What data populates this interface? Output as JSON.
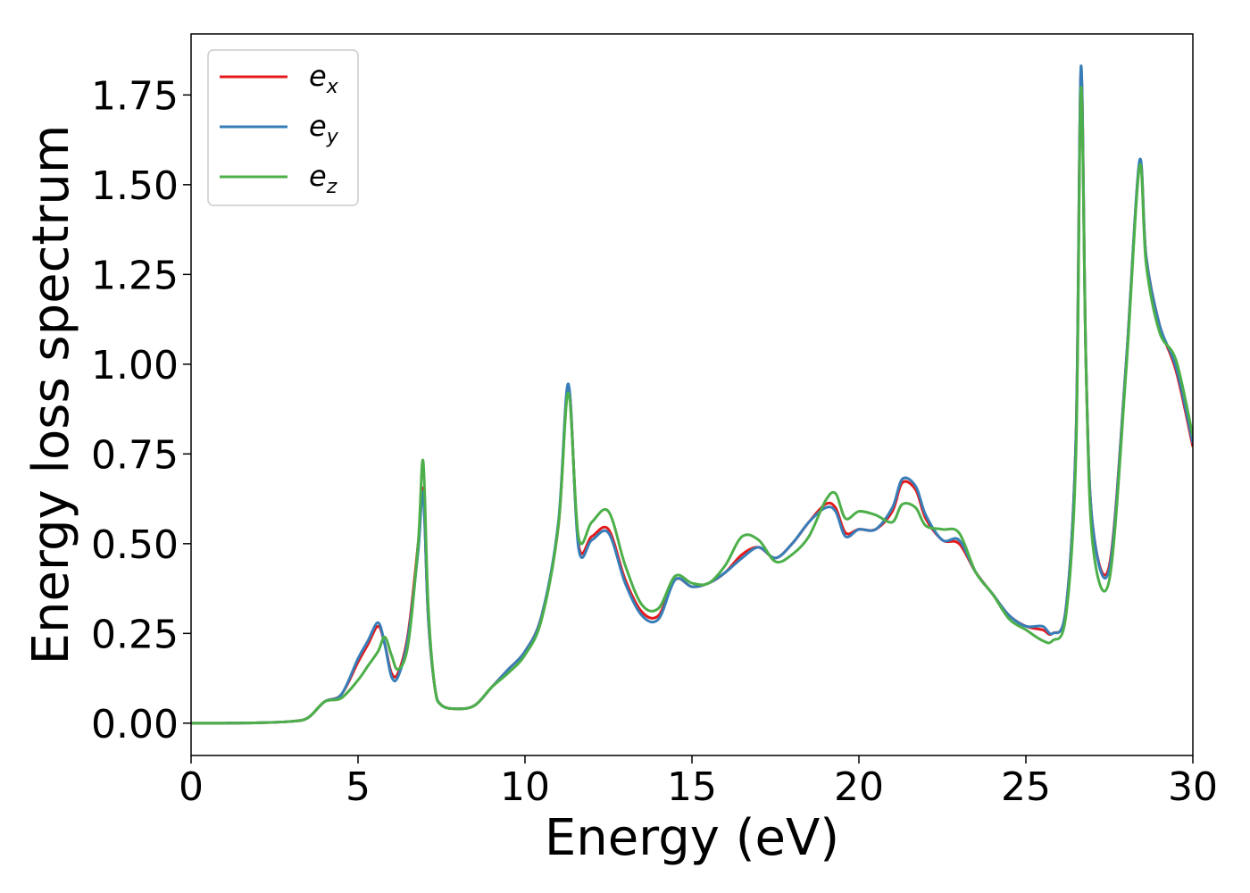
{
  "chart_data": {
    "type": "line",
    "title": "",
    "xlabel": "Energy (eV)",
    "ylabel": "Energy loss spectrum",
    "xlim": [
      0,
      30
    ],
    "ylim": [
      -0.09,
      1.92
    ],
    "xticks": [
      0,
      5,
      10,
      15,
      20,
      25,
      30
    ],
    "xtick_labels": [
      "0",
      "5",
      "10",
      "15",
      "20",
      "25",
      "30"
    ],
    "yticks": [
      0.0,
      0.25,
      0.5,
      0.75,
      1.0,
      1.25,
      1.5,
      1.75
    ],
    "ytick_labels": [
      "0.00",
      "0.25",
      "0.50",
      "0.75",
      "1.00",
      "1.25",
      "1.50",
      "1.75"
    ],
    "grid": false,
    "legend_position": "top-left",
    "x": [
      0,
      1,
      2,
      3,
      3.5,
      4,
      4.5,
      5,
      5.3,
      5.6,
      5.8,
      6.0,
      6.2,
      6.5,
      6.8,
      6.95,
      7.1,
      7.3,
      7.5,
      8.0,
      8.5,
      9.0,
      9.5,
      10.0,
      10.5,
      11.0,
      11.3,
      11.6,
      12.0,
      12.5,
      13.0,
      13.5,
      14.0,
      14.5,
      15.0,
      15.5,
      16.0,
      16.5,
      17.0,
      17.5,
      18.0,
      18.5,
      19.0,
      19.3,
      19.6,
      20.0,
      20.5,
      21.0,
      21.3,
      21.7,
      22.0,
      22.5,
      23.0,
      23.5,
      24.0,
      24.5,
      25.0,
      25.5,
      25.8,
      26.2,
      26.5,
      26.65,
      26.8,
      27.0,
      27.5,
      28.0,
      28.4,
      28.6,
      29.0,
      29.5,
      30.0
    ],
    "series": [
      {
        "name": "e_x",
        "color": "#e41a1c",
        "values": [
          0.0,
          0.0,
          0.001,
          0.005,
          0.015,
          0.06,
          0.08,
          0.17,
          0.22,
          0.27,
          0.22,
          0.14,
          0.14,
          0.25,
          0.5,
          0.65,
          0.3,
          0.1,
          0.05,
          0.04,
          0.05,
          0.1,
          0.15,
          0.2,
          0.3,
          0.55,
          0.94,
          0.5,
          0.52,
          0.54,
          0.4,
          0.31,
          0.3,
          0.4,
          0.38,
          0.39,
          0.42,
          0.47,
          0.49,
          0.46,
          0.5,
          0.56,
          0.61,
          0.6,
          0.53,
          0.54,
          0.54,
          0.59,
          0.67,
          0.65,
          0.57,
          0.51,
          0.5,
          0.42,
          0.36,
          0.3,
          0.27,
          0.26,
          0.25,
          0.32,
          0.8,
          1.82,
          1.0,
          0.55,
          0.44,
          1.0,
          1.56,
          1.3,
          1.11,
          0.98,
          0.77
        ]
      },
      {
        "name": "e_y",
        "color": "#377eb8",
        "values": [
          0.0,
          0.0,
          0.001,
          0.005,
          0.015,
          0.06,
          0.08,
          0.18,
          0.23,
          0.28,
          0.22,
          0.13,
          0.13,
          0.24,
          0.48,
          0.64,
          0.3,
          0.1,
          0.05,
          0.04,
          0.05,
          0.1,
          0.15,
          0.2,
          0.3,
          0.56,
          0.945,
          0.49,
          0.51,
          0.53,
          0.39,
          0.3,
          0.29,
          0.4,
          0.38,
          0.39,
          0.42,
          0.46,
          0.49,
          0.46,
          0.5,
          0.56,
          0.6,
          0.59,
          0.52,
          0.54,
          0.54,
          0.6,
          0.68,
          0.66,
          0.58,
          0.51,
          0.51,
          0.42,
          0.36,
          0.3,
          0.27,
          0.27,
          0.25,
          0.32,
          0.8,
          1.83,
          1.0,
          0.55,
          0.43,
          1.0,
          1.565,
          1.3,
          1.11,
          0.99,
          0.78
        ]
      },
      {
        "name": "e_z",
        "color": "#4daf4a",
        "values": [
          0.0,
          0.0,
          0.001,
          0.005,
          0.015,
          0.06,
          0.07,
          0.12,
          0.16,
          0.2,
          0.24,
          0.19,
          0.15,
          0.22,
          0.5,
          0.73,
          0.33,
          0.1,
          0.05,
          0.04,
          0.05,
          0.1,
          0.14,
          0.19,
          0.29,
          0.55,
          0.92,
          0.52,
          0.56,
          0.59,
          0.44,
          0.33,
          0.32,
          0.41,
          0.39,
          0.39,
          0.44,
          0.52,
          0.51,
          0.45,
          0.47,
          0.52,
          0.62,
          0.64,
          0.57,
          0.59,
          0.58,
          0.56,
          0.61,
          0.6,
          0.55,
          0.54,
          0.53,
          0.42,
          0.36,
          0.29,
          0.26,
          0.23,
          0.23,
          0.3,
          0.75,
          1.77,
          1.0,
          0.5,
          0.4,
          0.98,
          1.55,
          1.28,
          1.09,
          1.01,
          0.8
        ]
      }
    ]
  }
}
